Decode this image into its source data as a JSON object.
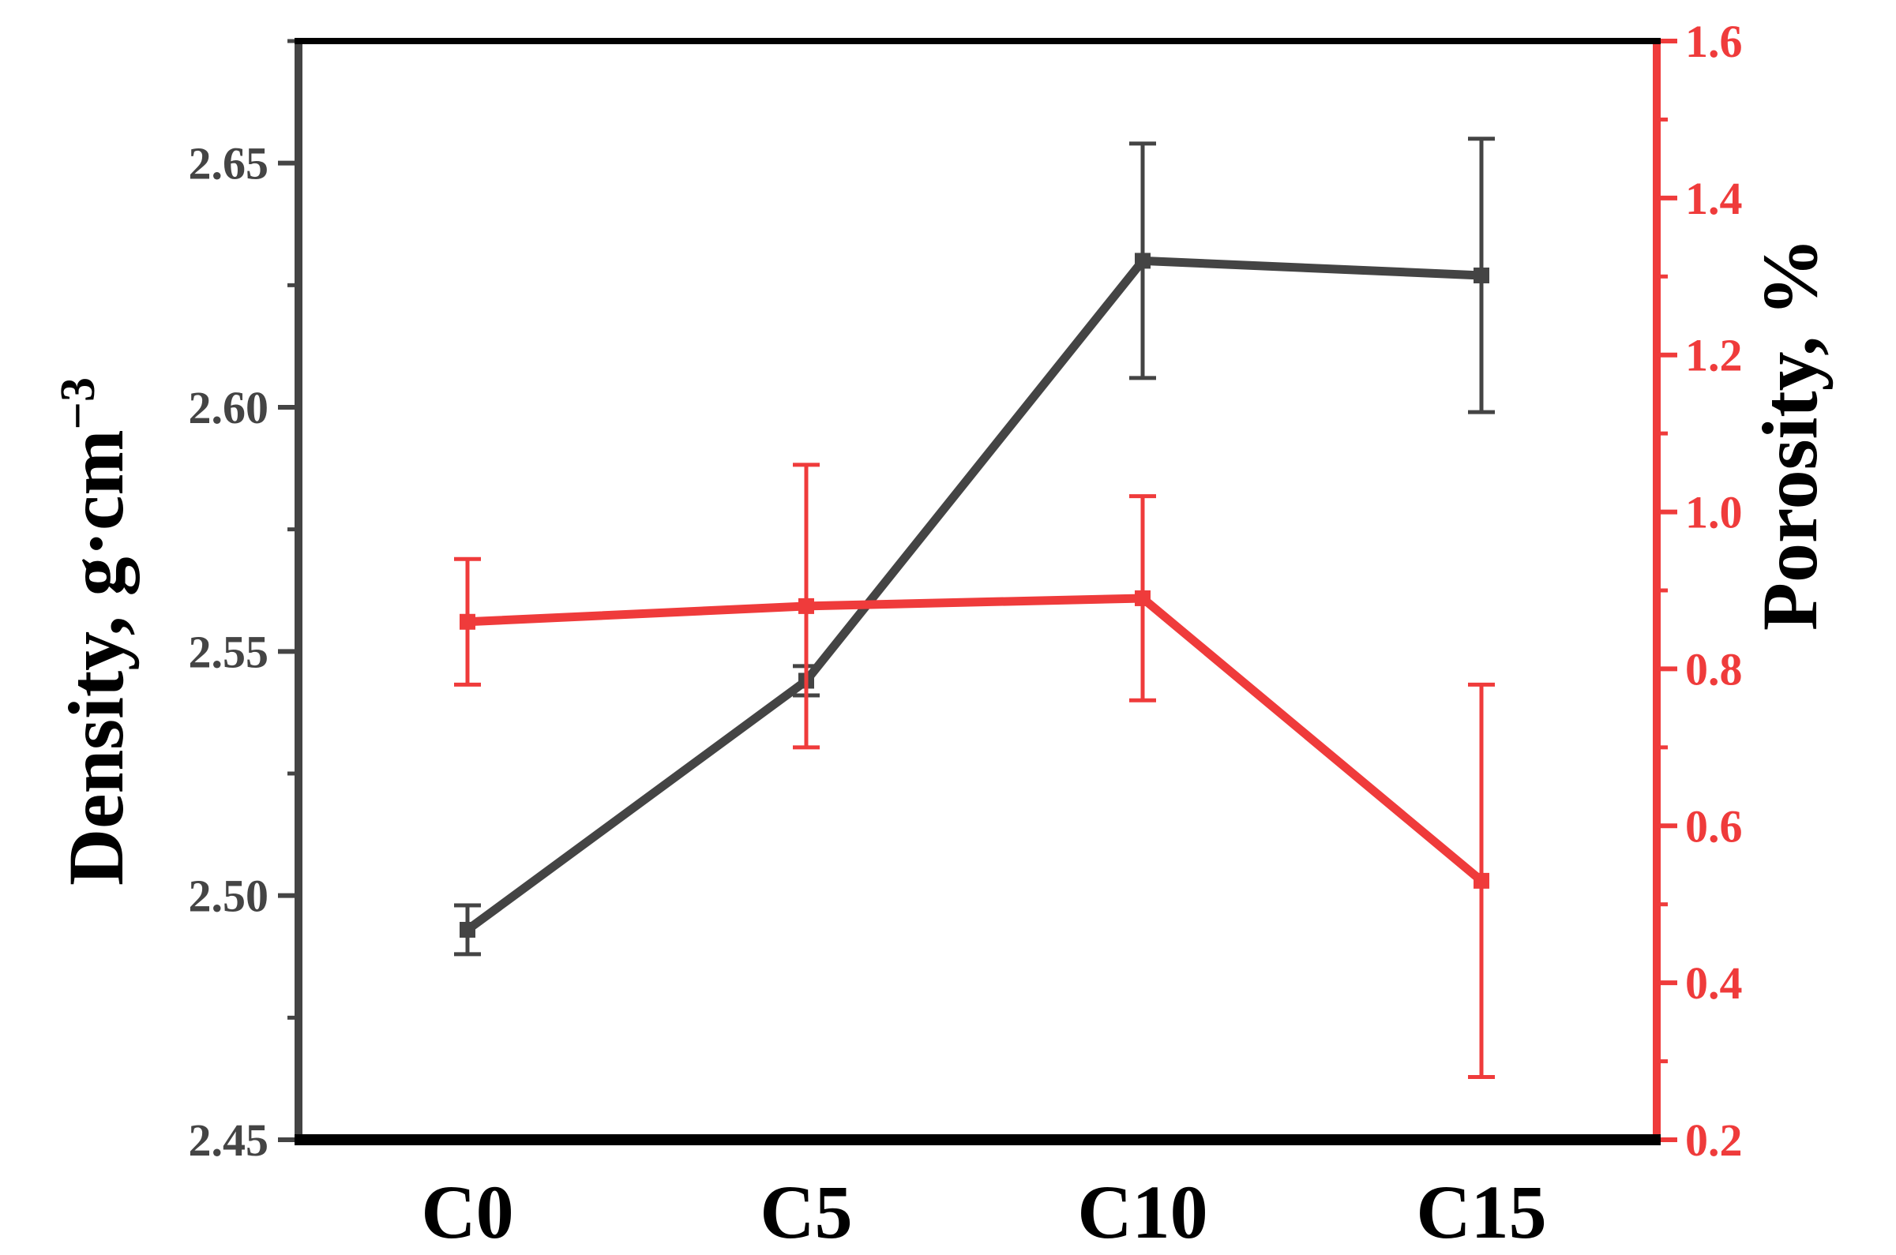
{
  "chart_data": {
    "type": "line",
    "categories": [
      "C0",
      "C5",
      "C10",
      "C15"
    ],
    "series": [
      {
        "name": "Density",
        "axis": "left",
        "color": "#444444",
        "values": [
          2.493,
          2.544,
          2.63,
          2.627
        ],
        "errors": [
          0.005,
          0.003,
          0.024,
          0.028
        ]
      },
      {
        "name": "Porosity",
        "axis": "right",
        "color": "#ef3b3b",
        "values": [
          0.86,
          0.88,
          0.89,
          0.53
        ],
        "errors": [
          0.08,
          0.18,
          0.13,
          0.25
        ]
      }
    ],
    "ylabel_left": {
      "main": "Density, g·cm",
      "sup": "−3"
    },
    "ylabel_right": "Porosity, %",
    "ylim_left": [
      2.45,
      2.675
    ],
    "ylim_right": [
      0.2,
      1.6
    ],
    "yticks_left": [
      "2.45",
      "2.50",
      "2.55",
      "2.60",
      "2.65"
    ],
    "yticks_right": [
      "0.2",
      "0.4",
      "0.6",
      "0.8",
      "1.0",
      "1.2",
      "1.4",
      "1.6"
    ],
    "legend": "none"
  }
}
